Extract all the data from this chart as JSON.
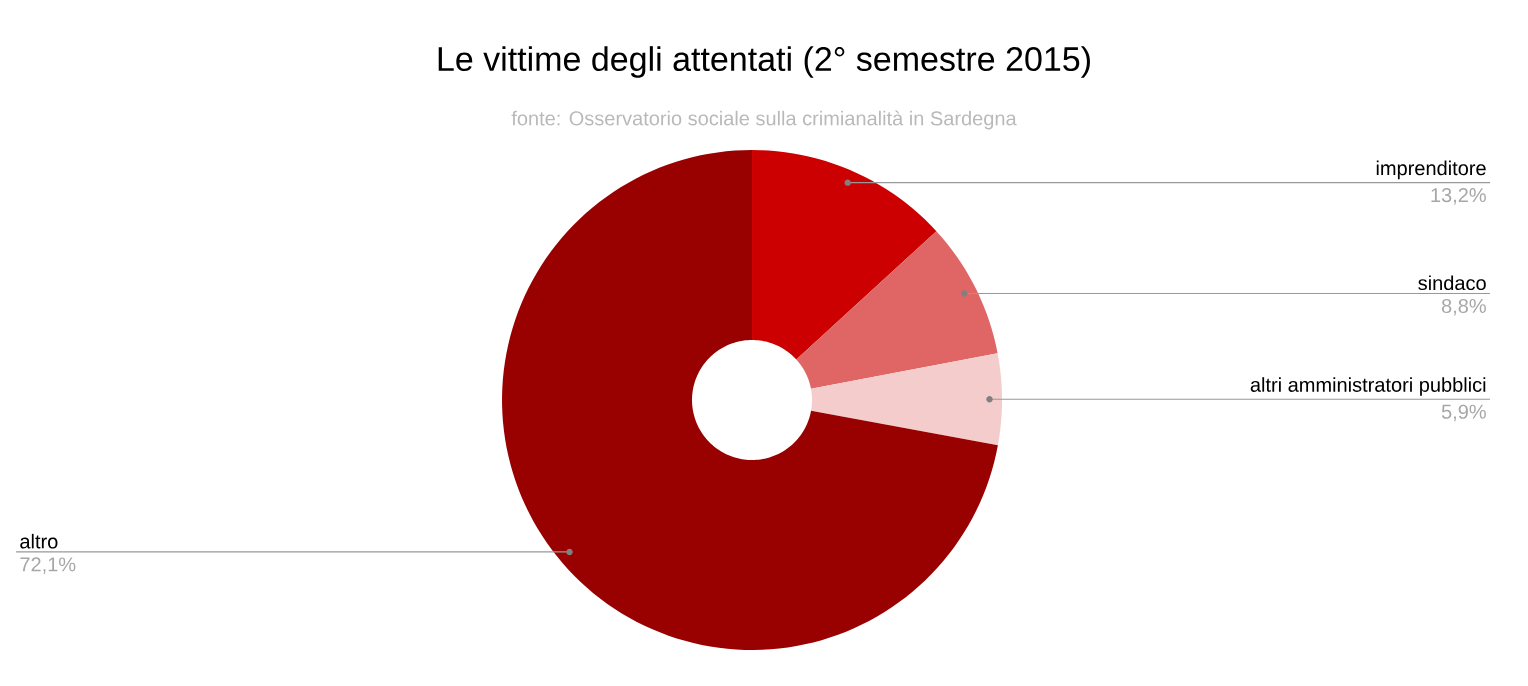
{
  "chart_data": {
    "type": "donut",
    "title": "Le vittime degli attentati (2° semestre 2015)",
    "annotations": [
      "fonte: Osservatorio sociale sulla crimianalità in Sardegna"
    ],
    "categories": [
      "imprenditore",
      "sindaco",
      "altri amministratori pubblici",
      "altro"
    ],
    "values": [
      13.2,
      8.8,
      5.9,
      72.1
    ],
    "value_labels": [
      "13,2%",
      "8,8%",
      "5,9%",
      "72,1%"
    ],
    "colors": [
      "#cc0000",
      "#e06666",
      "#f4cccc",
      "#990000"
    ]
  }
}
